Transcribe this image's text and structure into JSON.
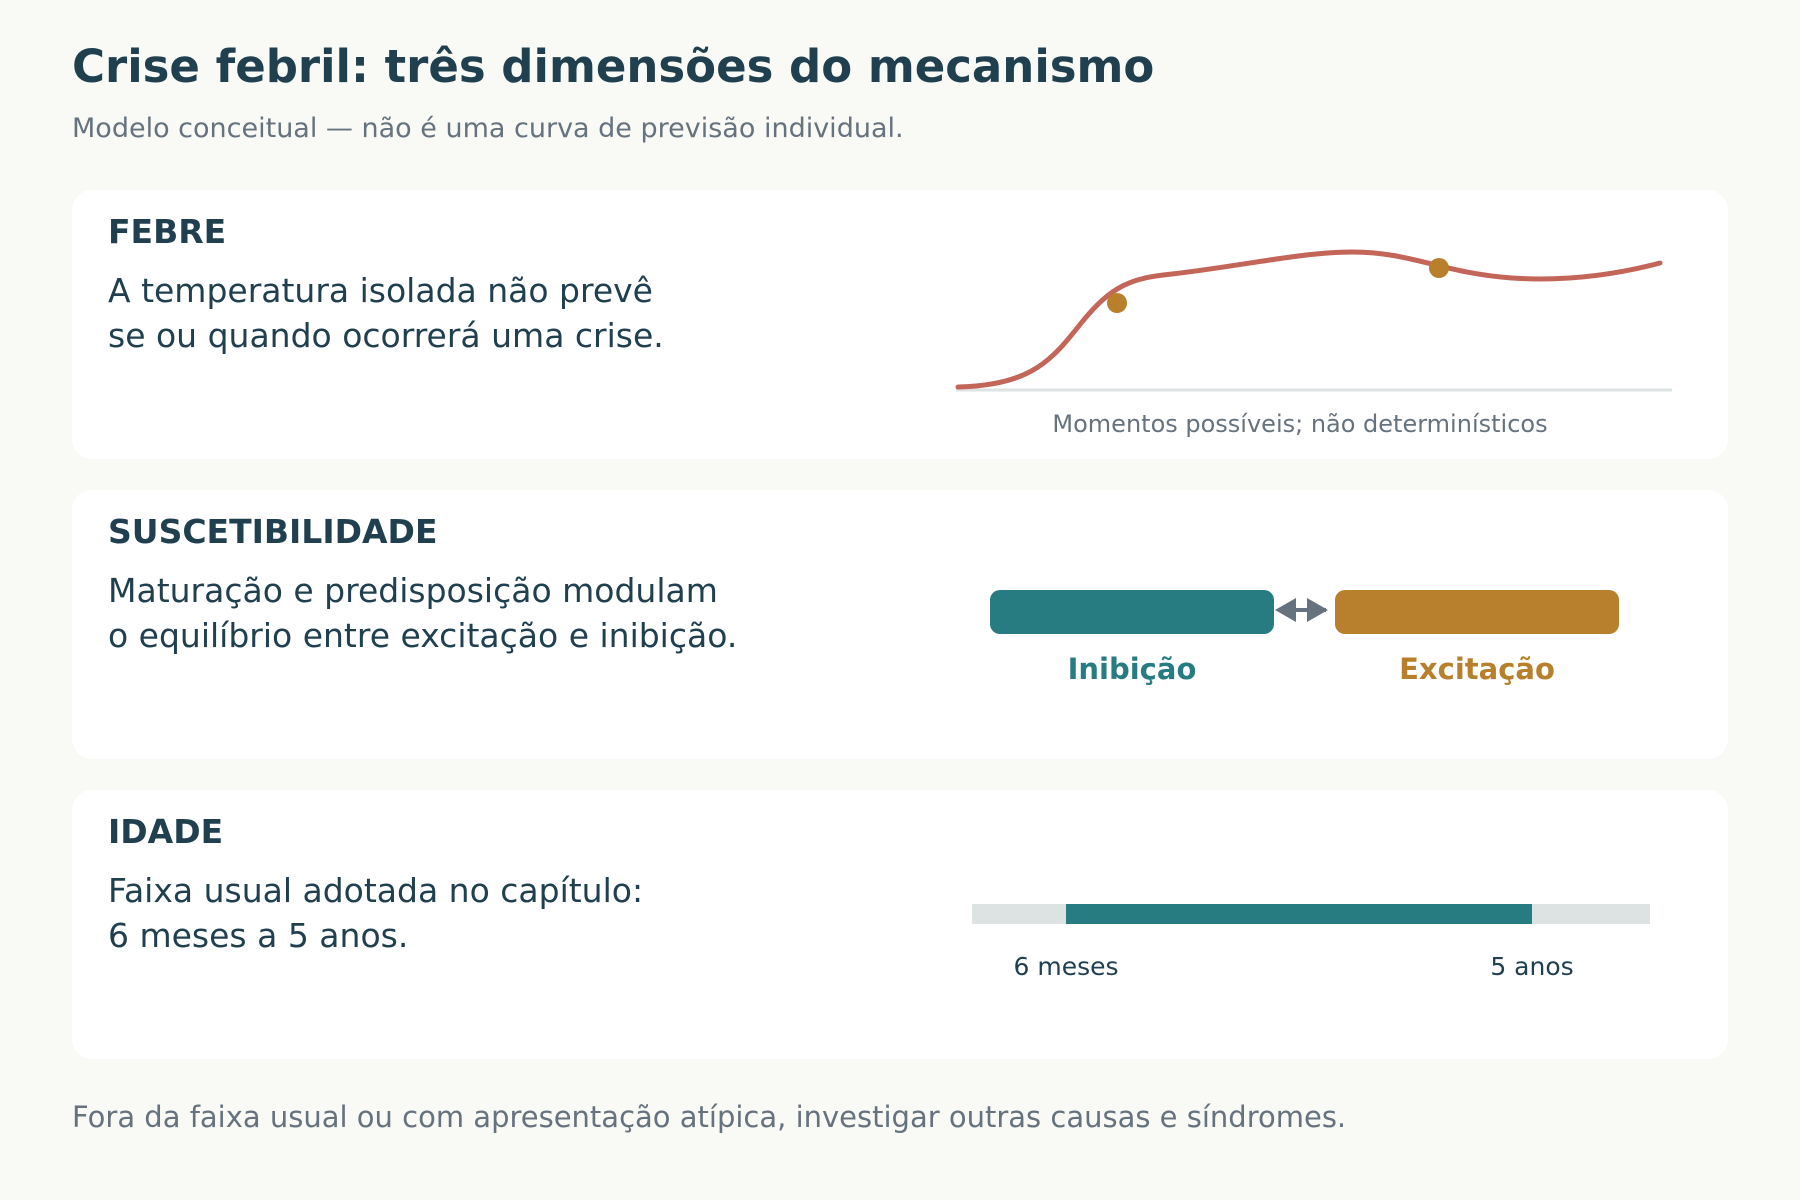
{
  "title": "Crise febril: três dimensões do mecanismo",
  "subtitle": "Modelo conceitual — não é uma curva de previsão individual.",
  "colors": {
    "text": "#21404f",
    "muted": "#66727d",
    "fever_curve": "#c4655a",
    "marker": "#b8802c",
    "inhibition": "#267c80",
    "excitation": "#b8802c",
    "arrow": "#66727d",
    "track": "#dde3e3"
  },
  "cards": {
    "febre": {
      "label": "FEBRE",
      "text_line1": "A temperatura isolada não prevê",
      "text_line2": "se ou quando ocorrerá uma crise.",
      "caption": "Momentos possíveis; não determinísticos"
    },
    "suscetibilidade": {
      "label": "SUSCETIBILIDADE",
      "text_line1": "Maturação e predisposição modulam",
      "text_line2": "o equilíbrio entre excitação e inibição.",
      "inhibition_label": "Inibição",
      "excitation_label": "Excitação"
    },
    "idade": {
      "label": "IDADE",
      "text_line1": "Faixa usual adotada no capítulo:",
      "text_line2": "6 meses a 5 anos.",
      "range_start_label": "6 meses",
      "range_end_label": "5 anos"
    }
  },
  "footer": "Fora da faixa usual ou com apresentação atípica, investigar outras causas e síndromes."
}
